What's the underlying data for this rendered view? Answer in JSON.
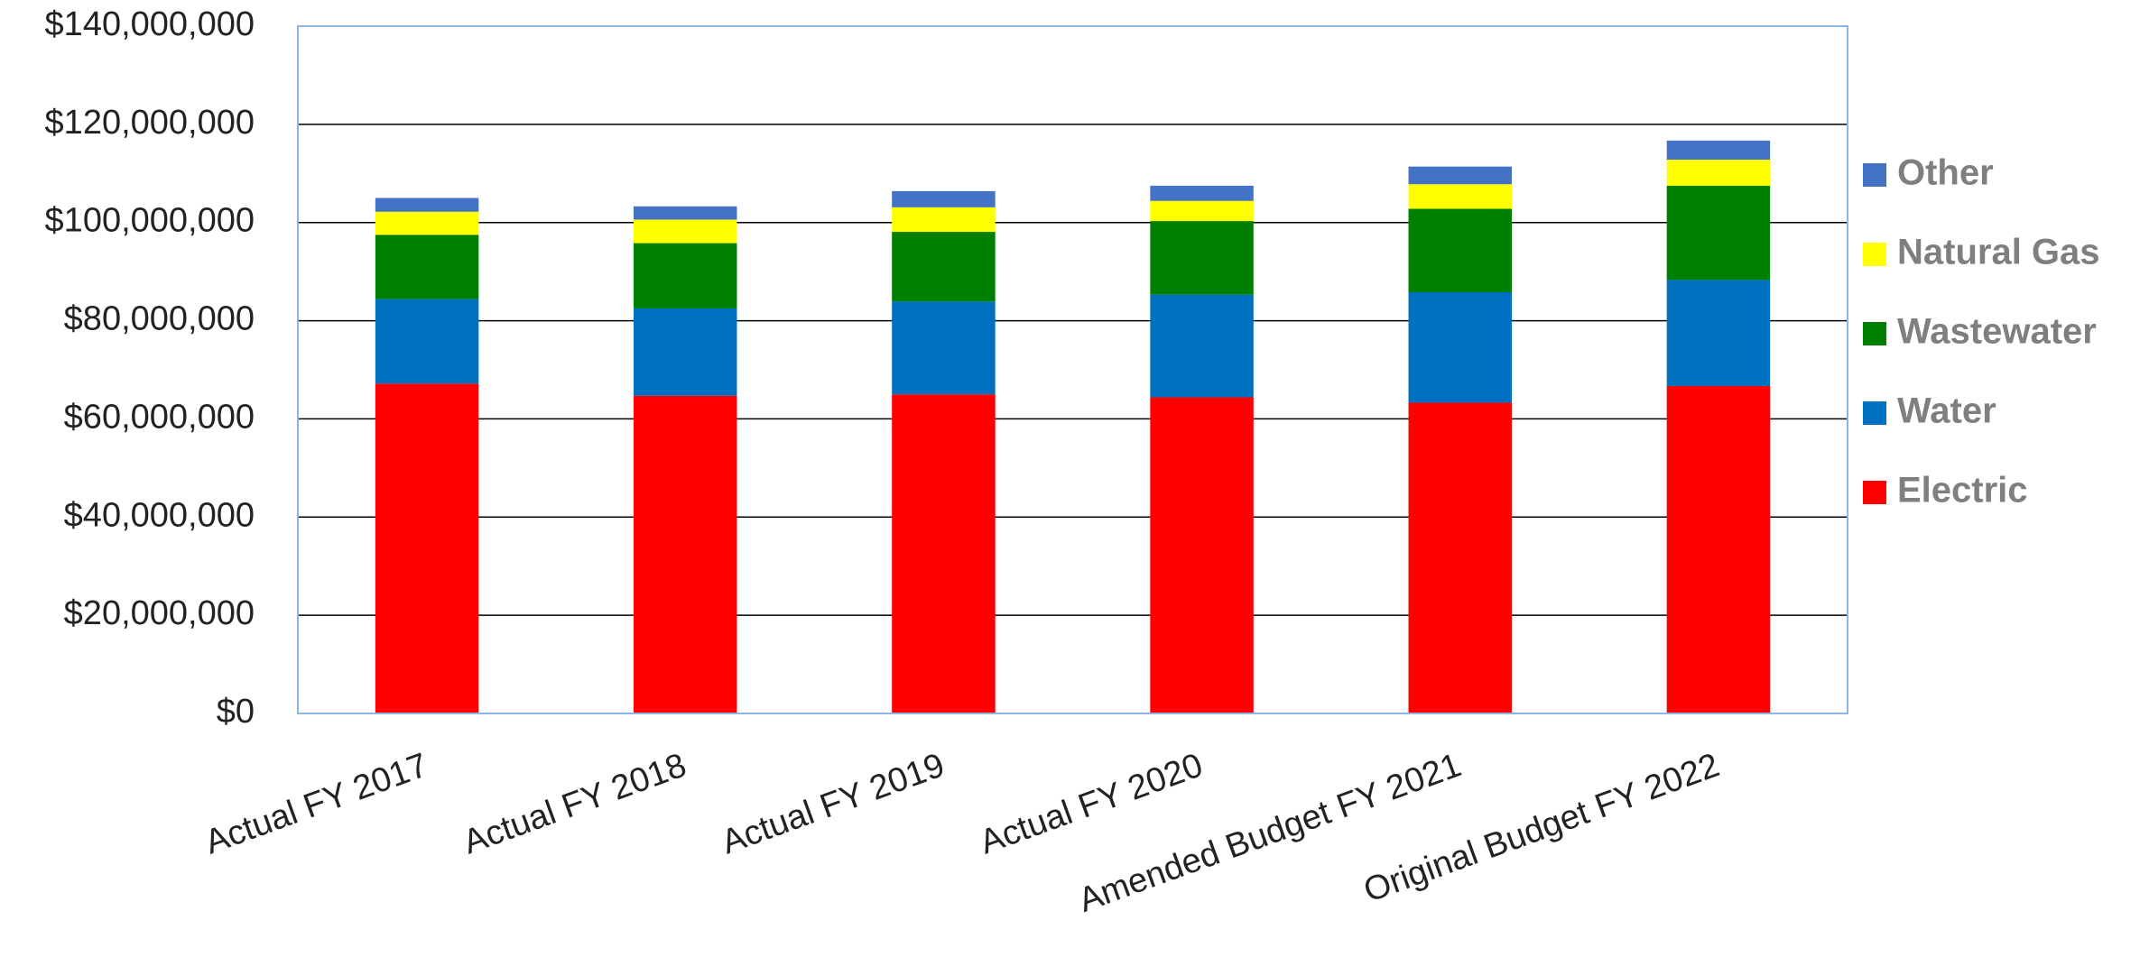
{
  "chart_data": {
    "type": "stacked_bar",
    "categories": [
      "Actual FY 2017",
      "Actual FY 2018",
      "Actual FY 2019",
      "Actual FY 2020",
      "Amended Budget FY 2021",
      "Original Budget FY 2022"
    ],
    "series": [
      {
        "name": "Electric",
        "color": "#ff0000",
        "values": [
          67200000,
          64700000,
          65000000,
          64400000,
          63300000,
          66700000
        ]
      },
      {
        "name": "Water",
        "color": "#0070c0",
        "values": [
          17200000,
          17800000,
          18900000,
          20900000,
          22500000,
          21600000
        ]
      },
      {
        "name": "Wastewater",
        "color": "#008000",
        "values": [
          13100000,
          13300000,
          14200000,
          15000000,
          17000000,
          19200000
        ]
      },
      {
        "name": "Natural Gas",
        "color": "#ffff00",
        "values": [
          4700000,
          4800000,
          5000000,
          4100000,
          5000000,
          5300000
        ]
      },
      {
        "name": "Other",
        "color": "#4472c4",
        "values": [
          2800000,
          2700000,
          3300000,
          3100000,
          3600000,
          3900000
        ]
      }
    ],
    "ylim": [
      0,
      140000000
    ],
    "yticks": [
      {
        "value": 0,
        "label": "$0"
      },
      {
        "value": 20000000,
        "label": "$20,000,000"
      },
      {
        "value": 40000000,
        "label": "$40,000,000"
      },
      {
        "value": 60000000,
        "label": "$60,000,000"
      },
      {
        "value": 80000000,
        "label": "$80,000,000"
      },
      {
        "value": 100000000,
        "label": "$100,000,000"
      },
      {
        "value": 120000000,
        "label": "$120,000,000"
      },
      {
        "value": 140000000,
        "label": "$140,000,000"
      }
    ],
    "grid": true,
    "legend": "right"
  }
}
